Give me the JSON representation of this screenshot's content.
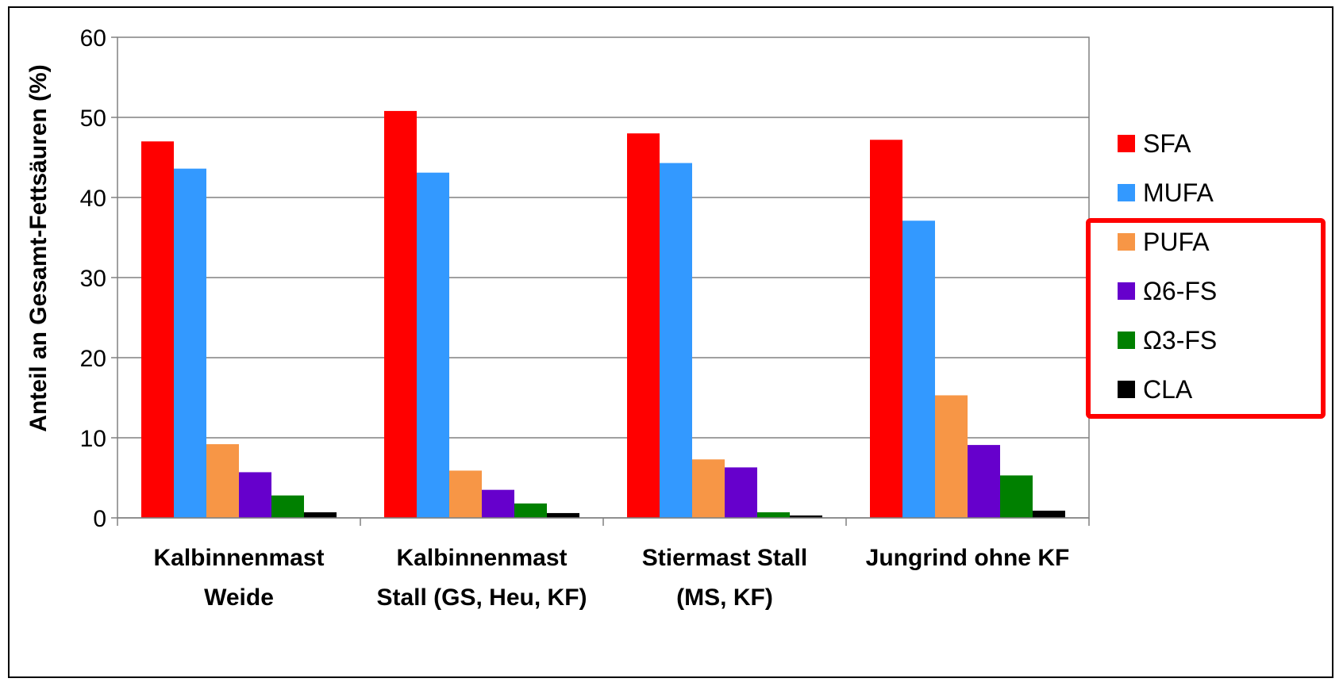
{
  "chart_data": {
    "type": "bar",
    "ylabel": "Anteil an Gesamt-Fettsäuren (%)",
    "xlabel": "",
    "ylim": [
      0,
      60
    ],
    "yticks": [
      0,
      10,
      20,
      30,
      40,
      50,
      60
    ],
    "grid": true,
    "legend_position": "right",
    "categories": [
      [
        "Kalbinnenmast",
        "Weide"
      ],
      [
        "Kalbinnenmast",
        "Stall (GS, Heu, KF)"
      ],
      [
        "Stiermast Stall",
        "(MS, KF)"
      ],
      [
        "Jungrind ohne KF"
      ]
    ],
    "series": [
      {
        "name": "SFA",
        "color": "#ff0000",
        "values": [
          47.0,
          50.8,
          48.0,
          47.2
        ]
      },
      {
        "name": "MUFA",
        "color": "#3399ff",
        "values": [
          43.6,
          43.1,
          44.3,
          37.1
        ]
      },
      {
        "name": "PUFA",
        "color": "#f79646",
        "values": [
          9.2,
          5.9,
          7.3,
          15.3
        ]
      },
      {
        "name": "Ω6-FS",
        "color": "#6600cc",
        "values": [
          5.7,
          3.5,
          6.3,
          9.1
        ]
      },
      {
        "name": "Ω3-FS",
        "color": "#008000",
        "values": [
          2.8,
          1.8,
          0.7,
          5.3
        ]
      },
      {
        "name": "CLA",
        "color": "#000000",
        "values": [
          0.7,
          0.6,
          0.3,
          0.9
        ]
      }
    ],
    "highlight_box_color": "#ff0000"
  }
}
